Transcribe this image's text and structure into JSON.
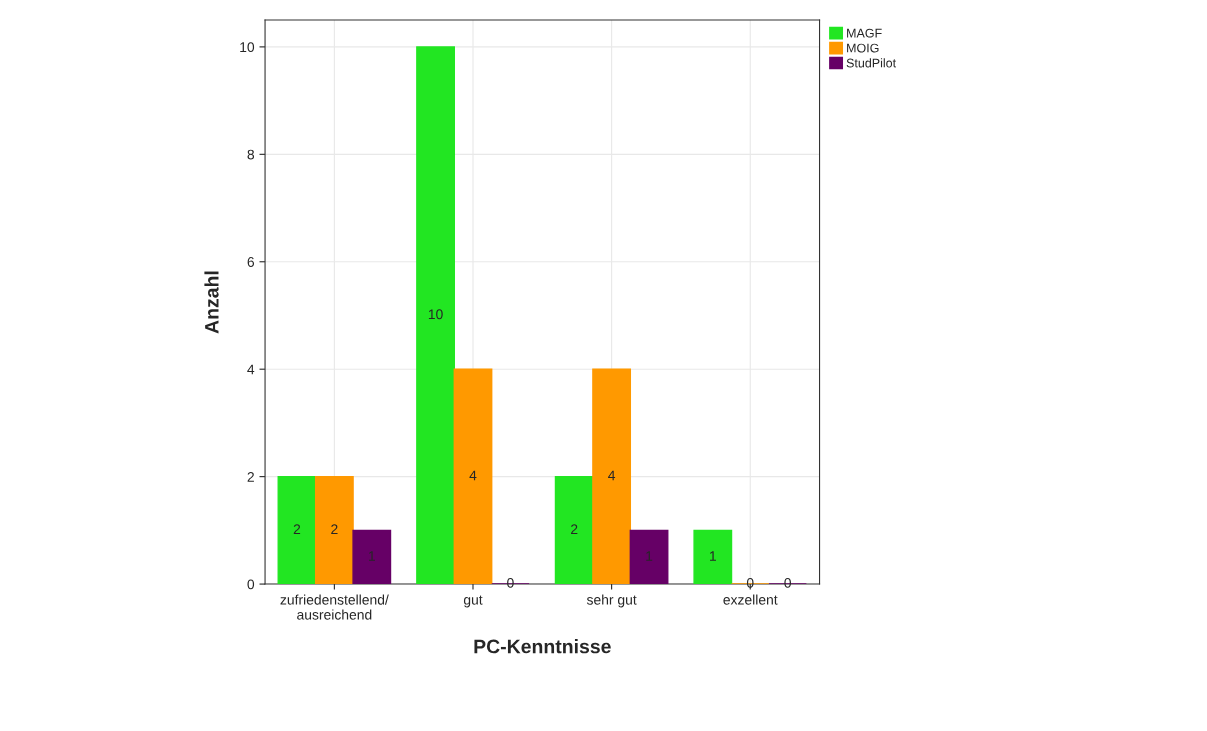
{
  "chart_data": {
    "type": "bar",
    "xlabel": "PC-Kenntnisse",
    "ylabel": "Anzahl",
    "categories": [
      "zufriedenstellend/\nausreichend",
      "gut",
      "sehr gut",
      "exzellent"
    ],
    "series": [
      {
        "name": "MAGF",
        "color": "#22e622",
        "values": [
          2,
          10,
          2,
          1
        ]
      },
      {
        "name": "MOIG",
        "color": "#ff9900",
        "values": [
          2,
          4,
          4,
          0
        ]
      },
      {
        "name": "StudPilot",
        "color": "#660066",
        "values": [
          1,
          0,
          1,
          0
        ]
      }
    ],
    "ylim": [
      0,
      10.5
    ],
    "yticks": [
      0,
      2,
      4,
      6,
      8,
      10
    ],
    "grid": true,
    "legend": "top right",
    "data_labels": true
  }
}
